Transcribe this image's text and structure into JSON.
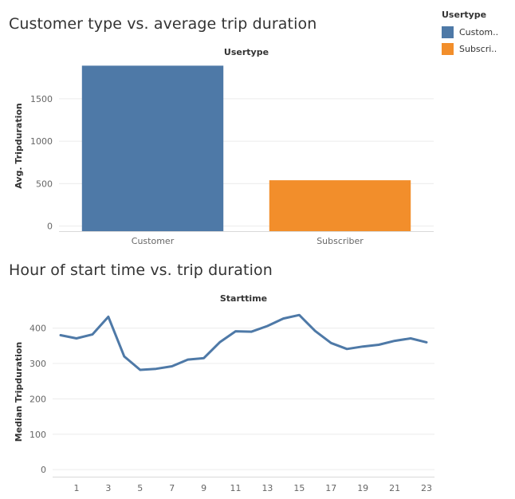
{
  "titles": {
    "chart1": "Customer type vs. average trip duration",
    "chart2": "Hour of start time vs. trip duration"
  },
  "legend": {
    "title": "Usertype",
    "items": [
      {
        "label": "Custom..",
        "color": "#4e79a7"
      },
      {
        "label": "Subscri..",
        "color": "#f28e2b"
      }
    ]
  },
  "chart_data": [
    {
      "type": "bar",
      "header": "Usertype",
      "ylabel": "Avg. Tripduration",
      "categories": [
        "Customer",
        "Subscriber"
      ],
      "values": [
        1890,
        540
      ],
      "colors": [
        "#4e79a7",
        "#f28e2b"
      ],
      "yticks": [
        0,
        500,
        1000,
        1500
      ],
      "ylim": [
        -60,
        1950
      ],
      "grid": true
    },
    {
      "type": "line",
      "header": "Starttime",
      "ylabel": "Median Tripduration",
      "x": [
        0,
        1,
        2,
        3,
        4,
        5,
        6,
        7,
        8,
        9,
        10,
        11,
        12,
        13,
        14,
        15,
        16,
        17,
        18,
        19,
        20,
        21,
        22,
        23
      ],
      "values": [
        380,
        371,
        382,
        432,
        320,
        282,
        285,
        292,
        311,
        315,
        360,
        391,
        390,
        406,
        427,
        437,
        392,
        358,
        341,
        348,
        353,
        364,
        371,
        360
      ],
      "xticks": [
        1,
        3,
        5,
        7,
        9,
        11,
        13,
        15,
        17,
        19,
        21,
        23
      ],
      "yticks": [
        0,
        100,
        200,
        300,
        400
      ],
      "ylim": [
        -20,
        460
      ],
      "color": "#4e79a7",
      "grid": true
    }
  ]
}
